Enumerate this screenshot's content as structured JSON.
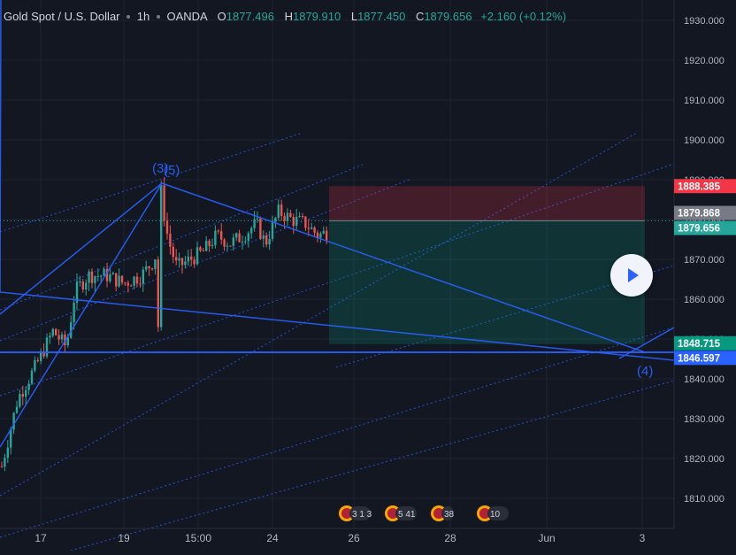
{
  "header": {
    "symbol": "Gold Spot / U.S. Dollar",
    "interval": "1h",
    "source": "OANDA",
    "open_label": "O",
    "open": "1877.496",
    "high_label": "H",
    "high": "1879.910",
    "low_label": "L",
    "low": "1877.450",
    "close_label": "C",
    "close": "1879.656",
    "change": "+2.160 (+0.12%)"
  },
  "colors": {
    "background": "#131722",
    "up": "#26a69a",
    "down": "#ef5350",
    "trendline": "#2962ff",
    "axis_text": "#b2b5be"
  },
  "chart_data": {
    "type": "candlestick",
    "ylim": [
      1805,
      1935
    ],
    "y_ticks": [
      "1930.000",
      "1920.000",
      "1910.000",
      "1900.000",
      "1890.000",
      "1880.000",
      "1870.000",
      "1860.000",
      "1850.000",
      "1840.000",
      "1830.000",
      "1820.000",
      "1810.000"
    ],
    "x_ticks": [
      "17",
      "19",
      "15:00",
      "24",
      "26",
      "28",
      "Jun",
      "3"
    ],
    "price_labels": [
      {
        "text": "1888.385",
        "value": 1888.385,
        "color": "#f23645"
      },
      {
        "text": "1879.868",
        "value": 1879.868,
        "color": "#787b86"
      },
      {
        "text": "1879.656",
        "value": 1879.656,
        "color": "#26a69a"
      },
      {
        "text": "1848.715",
        "value": 1848.715,
        "color": "#089981"
      },
      {
        "text": "1846.597",
        "value": 1846.597,
        "color": "#2962ff"
      }
    ],
    "position": {
      "stop": 1888.385,
      "entry": 1879.656,
      "target": 1848.715
    },
    "wave_labels": [
      "(3)",
      "(5)",
      "(4)"
    ],
    "horizontal_line": 1846.597,
    "events": [
      "3  1 3",
      "5  41",
      "38",
      "10"
    ]
  },
  "play_button": "play-icon"
}
